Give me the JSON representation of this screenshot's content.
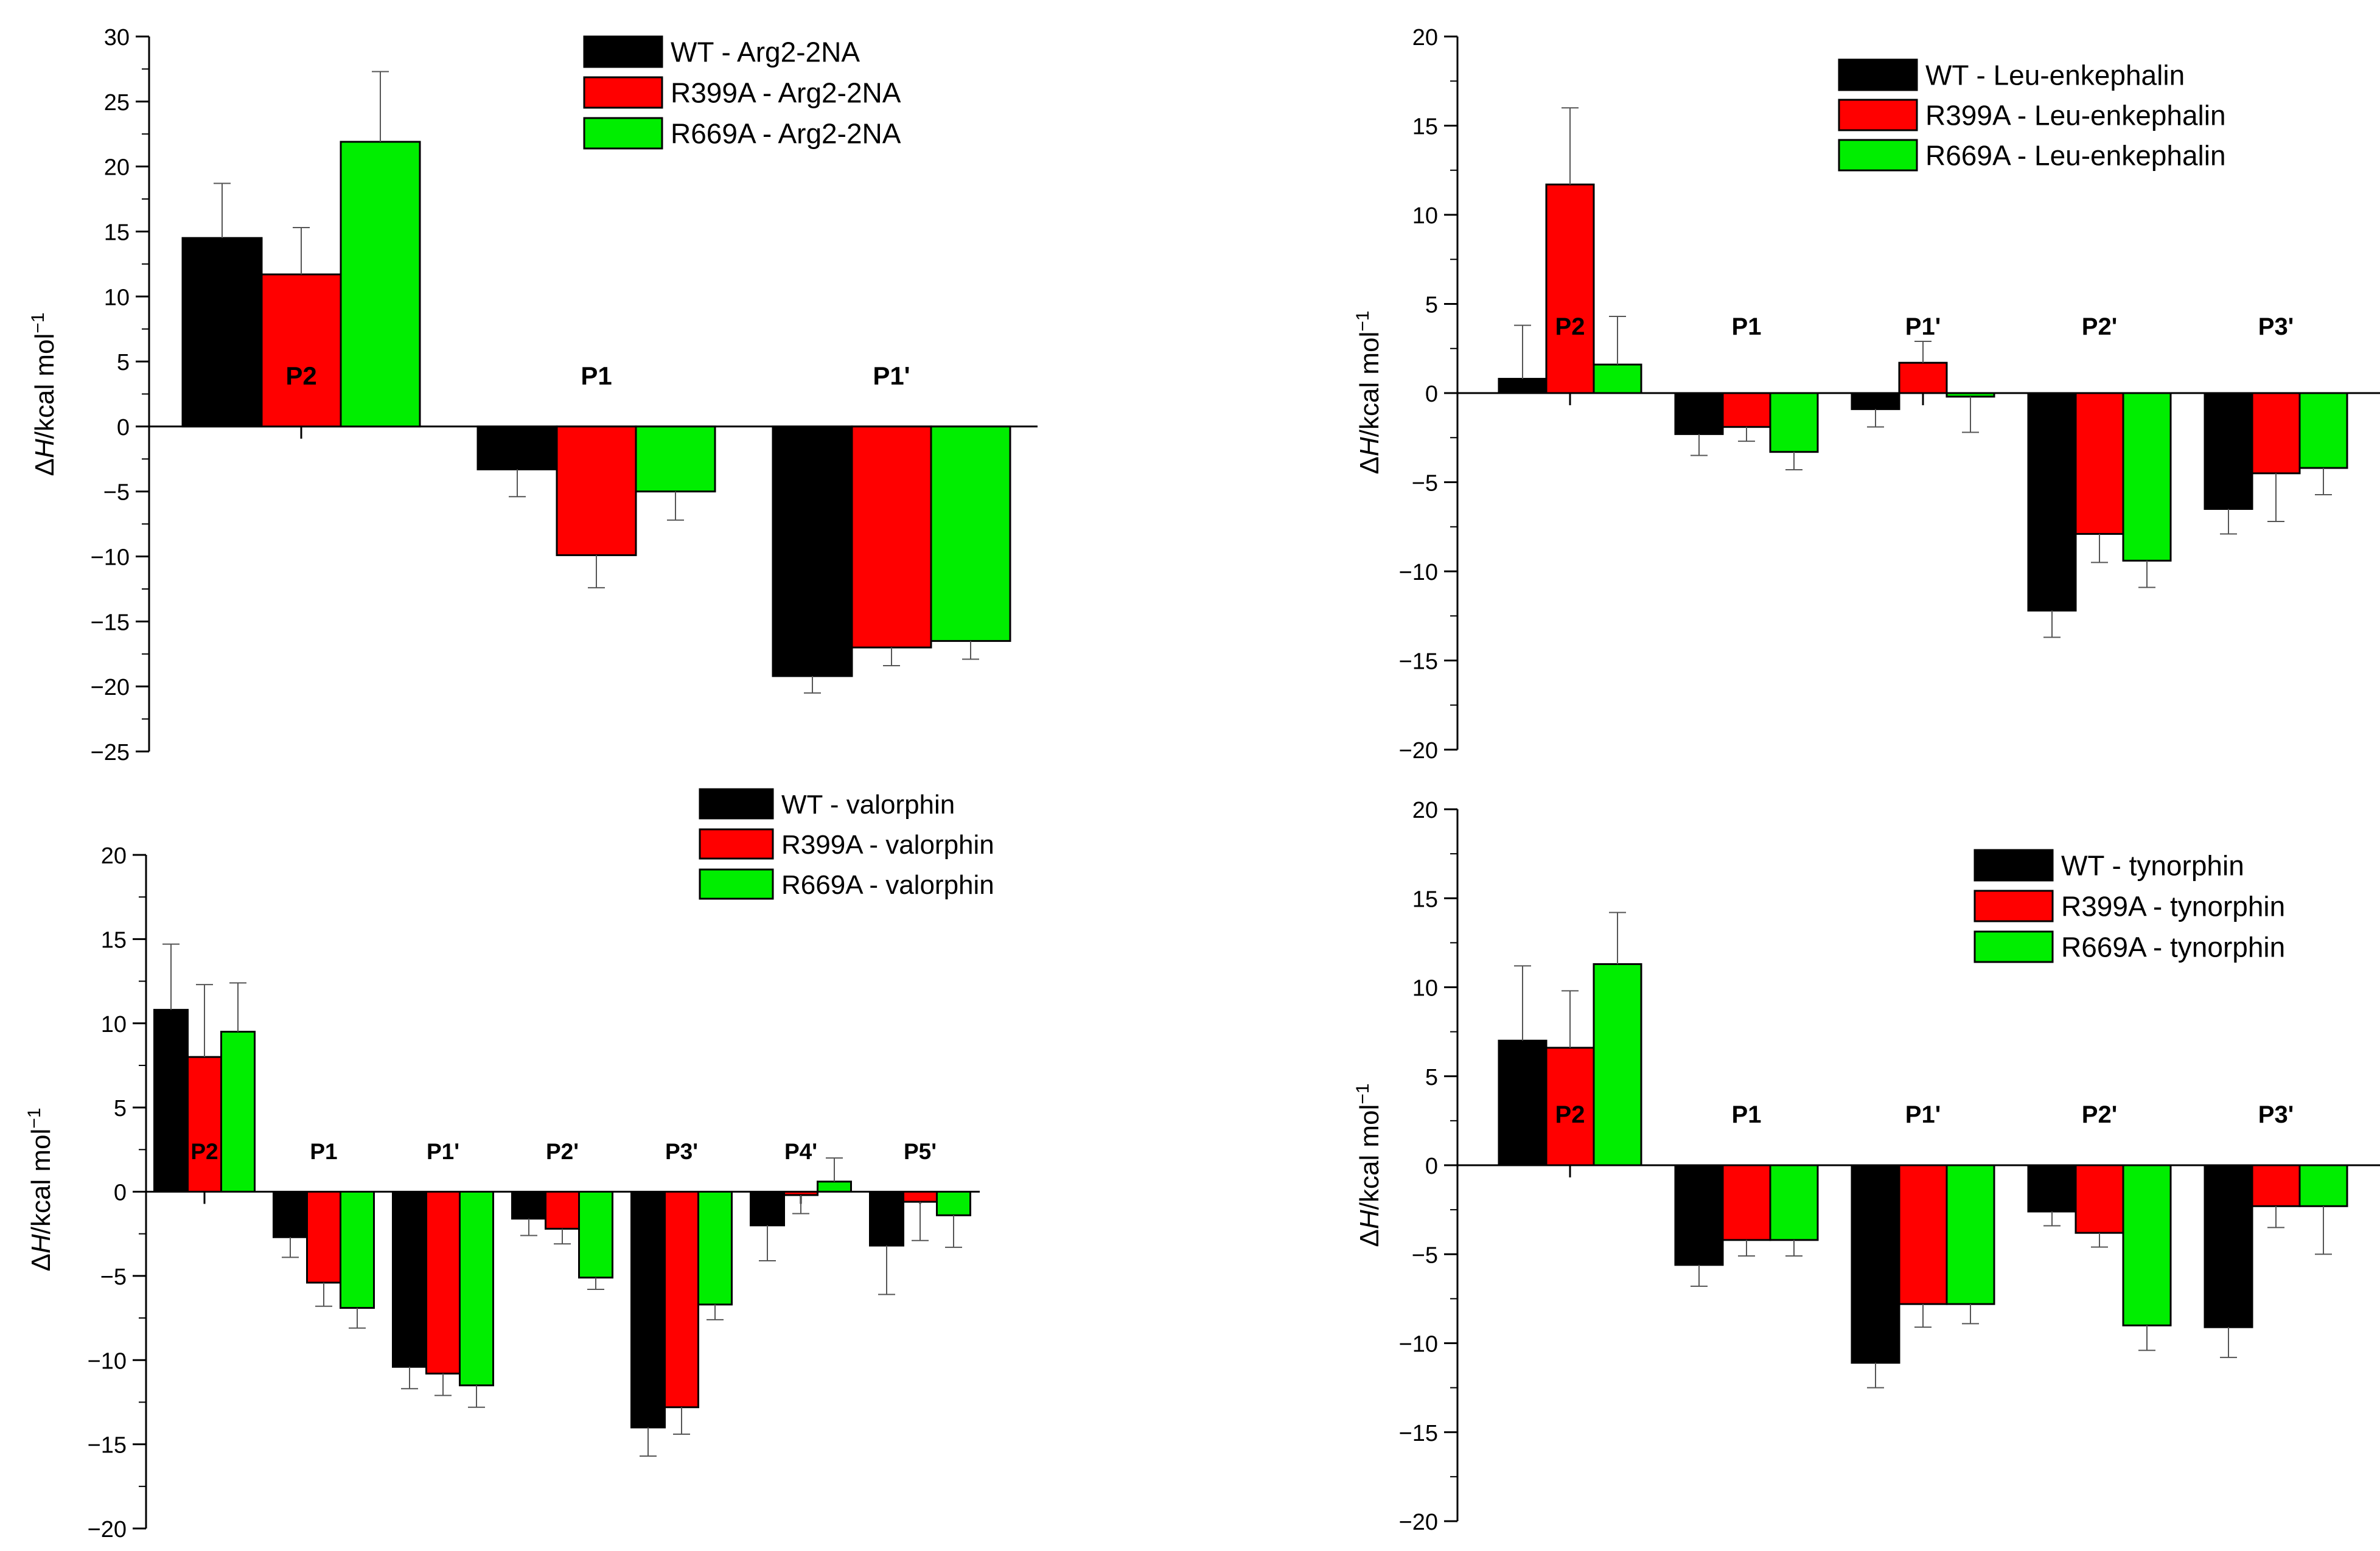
{
  "chart_data": [
    {
      "type": "bar",
      "ylabel_prefix": "Δ",
      "ylabel_var": "H",
      "ylabel_unit": "/kcal mol",
      "ylabel_exp": "−1",
      "ylim": [
        -25,
        30
      ],
      "yticks": [
        -25,
        -20,
        -15,
        -10,
        -5,
        0,
        5,
        10,
        15,
        20,
        25,
        30
      ],
      "categories": [
        "P2",
        "P1",
        "P1'"
      ],
      "legend_position": "top-right",
      "series": [
        {
          "name": "WT - Arg2-2NA",
          "color": "#000000",
          "values": [
            14.5,
            -3.3,
            -19.2
          ],
          "errors": [
            4.2,
            2.1,
            1.3
          ]
        },
        {
          "name": "R399A - Arg2-2NA",
          "color": "#ff0000",
          "values": [
            11.7,
            -9.9,
            -17.0
          ],
          "errors": [
            3.6,
            2.5,
            1.4
          ]
        },
        {
          "name": "R669A - Arg2-2NA",
          "color": "#00ee00",
          "values": [
            21.9,
            -5.0,
            -16.5
          ],
          "errors": [
            5.4,
            2.2,
            1.4
          ]
        }
      ]
    },
    {
      "type": "bar",
      "ylabel_prefix": "Δ",
      "ylabel_var": "H",
      "ylabel_unit": "/kcal mol",
      "ylabel_exp": "−1",
      "ylim": [
        -20,
        20
      ],
      "yticks": [
        -20,
        -15,
        -10,
        -5,
        0,
        5,
        10,
        15,
        20
      ],
      "categories": [
        "P2",
        "P1",
        "P1'",
        "P2'",
        "P3'"
      ],
      "legend_position": "top-right",
      "series": [
        {
          "name": "WT - Leu-enkephalin",
          "color": "#000000",
          "values": [
            0.8,
            -2.3,
            -0.9,
            -12.2,
            -6.5
          ],
          "errors": [
            3.0,
            1.2,
            1.0,
            1.5,
            1.4
          ]
        },
        {
          "name": "R399A - Leu-enkephalin",
          "color": "#ff0000",
          "values": [
            11.7,
            -1.9,
            1.7,
            -7.9,
            -4.5
          ],
          "errors": [
            4.3,
            0.8,
            1.2,
            1.6,
            2.7
          ]
        },
        {
          "name": "R669A - Leu-enkephalin",
          "color": "#00ee00",
          "values": [
            1.6,
            -3.3,
            -0.2,
            -9.4,
            -4.2
          ],
          "errors": [
            2.7,
            1.0,
            2.0,
            1.5,
            1.5
          ]
        }
      ]
    },
    {
      "type": "bar",
      "ylabel_prefix": "Δ",
      "ylabel_var": "H",
      "ylabel_unit": "/kcal mol",
      "ylabel_exp": "−1",
      "ylim": [
        -20,
        20
      ],
      "yticks": [
        -20,
        -15,
        -10,
        -5,
        0,
        5,
        10,
        15,
        20
      ],
      "categories": [
        "P2",
        "P1",
        "P1'",
        "P2'",
        "P3'",
        "P4'",
        "P5'"
      ],
      "legend_position": "top-right",
      "series": [
        {
          "name": "WT - valorphin",
          "color": "#000000",
          "values": [
            10.8,
            -2.7,
            -10.4,
            -1.6,
            -14.0,
            -2.0,
            -3.2
          ],
          "errors": [
            3.9,
            1.2,
            1.3,
            1.0,
            1.7,
            2.1,
            2.9
          ]
        },
        {
          "name": "R399A - valorphin",
          "color": "#ff0000",
          "values": [
            8.0,
            -5.4,
            -10.8,
            -2.2,
            -12.8,
            -0.2,
            -0.6
          ],
          "errors": [
            4.3,
            1.4,
            1.3,
            0.9,
            1.6,
            1.1,
            2.3
          ]
        },
        {
          "name": "R669A - valorphin",
          "color": "#00ee00",
          "values": [
            9.5,
            -6.9,
            -11.5,
            -5.1,
            -6.7,
            0.6,
            -1.4
          ],
          "errors": [
            2.9,
            1.2,
            1.3,
            0.7,
            0.9,
            1.4,
            1.9
          ]
        }
      ]
    },
    {
      "type": "bar",
      "ylabel_prefix": "Δ",
      "ylabel_var": "H",
      "ylabel_unit": "/kcal mol",
      "ylabel_exp": "−1",
      "ylim": [
        -20,
        20
      ],
      "yticks": [
        -20,
        -15,
        -10,
        -5,
        0,
        5,
        10,
        15,
        20
      ],
      "categories": [
        "P2",
        "P1",
        "P1'",
        "P2'",
        "P3'"
      ],
      "legend_position": "top-right",
      "series": [
        {
          "name": "WT - tynorphin",
          "color": "#000000",
          "values": [
            7.0,
            -5.6,
            -11.1,
            -2.6,
            -9.1
          ],
          "errors": [
            4.2,
            1.2,
            1.4,
            0.8,
            1.7
          ]
        },
        {
          "name": "R399A - tynorphin",
          "color": "#ff0000",
          "values": [
            6.6,
            -4.2,
            -7.8,
            -3.8,
            -2.3
          ],
          "errors": [
            3.2,
            0.9,
            1.3,
            0.8,
            1.2
          ]
        },
        {
          "name": "R669A - tynorphin",
          "color": "#00ee00",
          "values": [
            11.3,
            -4.2,
            -7.8,
            -9.0,
            -2.3
          ],
          "errors": [
            2.9,
            0.9,
            1.1,
            1.4,
            2.7
          ]
        }
      ]
    }
  ]
}
